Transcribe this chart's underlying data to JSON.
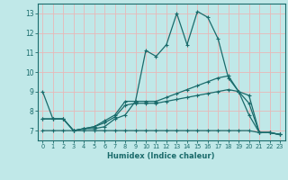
{
  "title": "",
  "xlabel": "Humidex (Indice chaleur)",
  "bg_color": "#c0e8e8",
  "grid_color": "#e8b8b8",
  "line_color": "#1a6b6b",
  "xlim": [
    -0.5,
    23.5
  ],
  "ylim": [
    6.5,
    13.5
  ],
  "xticks": [
    0,
    1,
    2,
    3,
    4,
    5,
    6,
    7,
    8,
    9,
    10,
    11,
    12,
    13,
    14,
    15,
    16,
    17,
    18,
    19,
    20,
    21,
    22,
    23
  ],
  "yticks": [
    7,
    8,
    9,
    10,
    11,
    12,
    13
  ],
  "series": [
    {
      "x": [
        0,
        1,
        2,
        3,
        4,
        5,
        6,
        7,
        8,
        9,
        10,
        11,
        12,
        13,
        14,
        15,
        16,
        17,
        18,
        19,
        20,
        21,
        22,
        23
      ],
      "y": [
        9.0,
        7.6,
        7.6,
        7.0,
        7.1,
        7.1,
        7.2,
        7.6,
        7.8,
        8.5,
        11.1,
        10.8,
        11.4,
        13.0,
        11.4,
        13.1,
        12.8,
        11.7,
        9.7,
        9.0,
        7.8,
        6.9,
        6.9,
        6.8
      ]
    },
    {
      "x": [
        0,
        1,
        2,
        3,
        4,
        5,
        6,
        7,
        8,
        9,
        10,
        11,
        12,
        13,
        14,
        15,
        16,
        17,
        18,
        19,
        20,
        21,
        22,
        23
      ],
      "y": [
        7.6,
        7.6,
        7.6,
        7.0,
        7.1,
        7.2,
        7.5,
        7.8,
        8.5,
        8.5,
        8.5,
        8.5,
        8.7,
        8.9,
        9.1,
        9.3,
        9.5,
        9.7,
        9.8,
        9.0,
        8.8,
        6.9,
        6.9,
        6.8
      ]
    },
    {
      "x": [
        0,
        1,
        2,
        3,
        4,
        5,
        6,
        7,
        8,
        9,
        10,
        11,
        12,
        13,
        14,
        15,
        16,
        17,
        18,
        19,
        20,
        21,
        22,
        23
      ],
      "y": [
        7.6,
        7.6,
        7.6,
        7.0,
        7.1,
        7.2,
        7.4,
        7.7,
        8.3,
        8.4,
        8.4,
        8.4,
        8.5,
        8.6,
        8.7,
        8.8,
        8.9,
        9.0,
        9.1,
        9.0,
        8.4,
        6.9,
        6.9,
        6.8
      ]
    },
    {
      "x": [
        0,
        1,
        2,
        3,
        4,
        5,
        6,
        7,
        8,
        9,
        10,
        11,
        12,
        13,
        14,
        15,
        16,
        17,
        18,
        19,
        20,
        21,
        22,
        23
      ],
      "y": [
        7.0,
        7.0,
        7.0,
        7.0,
        7.0,
        7.0,
        7.0,
        7.0,
        7.0,
        7.0,
        7.0,
        7.0,
        7.0,
        7.0,
        7.0,
        7.0,
        7.0,
        7.0,
        7.0,
        7.0,
        7.0,
        6.9,
        6.9,
        6.8
      ]
    }
  ]
}
